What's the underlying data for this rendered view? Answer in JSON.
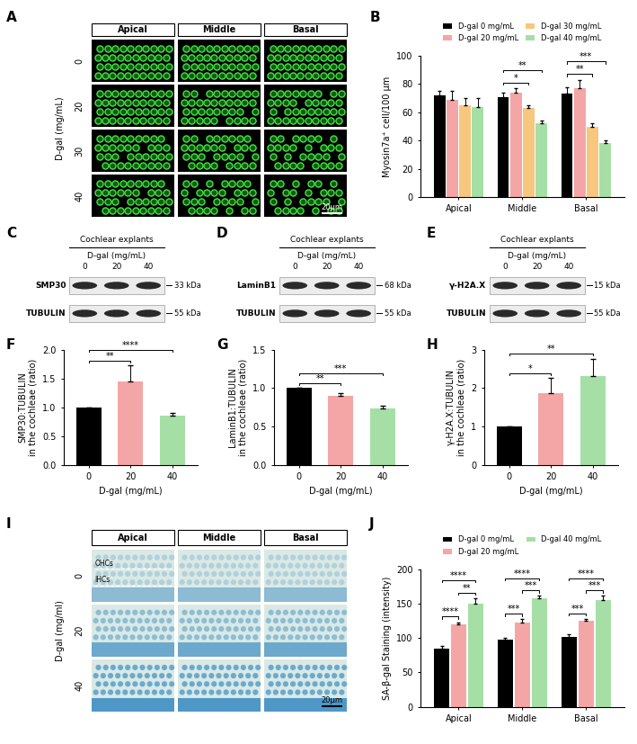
{
  "chart_data": [
    {
      "panel": "B",
      "type": "bar",
      "categories": [
        "Apical",
        "Middle",
        "Basal"
      ],
      "ylabel": "Myosin7a⁺ cell/100 μm",
      "ylim": [
        0,
        100
      ],
      "yticks": [
        0,
        20,
        40,
        60,
        80,
        100
      ],
      "legend": "top",
      "series": [
        {
          "name": "D-gal 0 mg/mL",
          "color": "#000000",
          "values": [
            72,
            71,
            73
          ],
          "errors": [
            3,
            3,
            5
          ]
        },
        {
          "name": "D-gal 20 mg/mL",
          "color": "#f4a6a6",
          "values": [
            69,
            74,
            77
          ],
          "errors": [
            6,
            3,
            6
          ]
        },
        {
          "name": "D-gal 30 mg/mL",
          "color": "#f7c77e",
          "values": [
            65,
            63,
            50
          ],
          "errors": [
            5,
            2,
            2
          ]
        },
        {
          "name": "D-gal 40 mg/mL",
          "color": "#a6dfa6",
          "values": [
            64,
            52,
            38
          ],
          "errors": [
            6,
            2,
            2
          ]
        }
      ],
      "significance": [
        {
          "category": "Middle",
          "from": 0,
          "to": 2,
          "label": "*"
        },
        {
          "category": "Middle",
          "from": 0,
          "to": 3,
          "label": "**"
        },
        {
          "category": "Basal",
          "from": 0,
          "to": 2,
          "label": "**"
        },
        {
          "category": "Basal",
          "from": 0,
          "to": 3,
          "label": "***"
        }
      ]
    },
    {
      "panel": "F",
      "type": "bar",
      "categories": [
        "0",
        "20",
        "40"
      ],
      "values": [
        1.0,
        1.45,
        0.85
      ],
      "errors": [
        0,
        0.28,
        0.05
      ],
      "colors": [
        "#000000",
        "#f4a6a6",
        "#a6dfa6"
      ],
      "xlabel": "D-gal (mg/mL)",
      "ylabel": "SMP30:TUBULIN\nin the cochleae (ratio)",
      "ylim": [
        0,
        2.0
      ],
      "yticks": [
        {
          "value": 0,
          "label": "0.0"
        },
        {
          "value": 0.5,
          "label": "0.5"
        },
        {
          "value": 1.0,
          "label": "1.0"
        },
        {
          "value": 1.5,
          "label": "1.5"
        },
        {
          "value": 2.0,
          "label": "2.0"
        }
      ],
      "significance": [
        {
          "from": 0,
          "to": 1,
          "label": "**"
        },
        {
          "from": 0,
          "to": 2,
          "label": "****"
        }
      ]
    },
    {
      "panel": "G",
      "type": "bar",
      "categories": [
        "0",
        "20",
        "40"
      ],
      "values": [
        1.0,
        0.9,
        0.73
      ],
      "errors": [
        0,
        0.03,
        0.04
      ],
      "colors": [
        "#000000",
        "#f4a6a6",
        "#a6dfa6"
      ],
      "xlabel": "D-gal (mg/mL)",
      "ylabel": "LaminB1:TUBULIN\nin the cochleae (ratio)",
      "ylim": [
        0,
        1.5
      ],
      "yticks": [
        {
          "value": 0,
          "label": "0.0"
        },
        {
          "value": 0.5,
          "label": "0.5"
        },
        {
          "value": 1.0,
          "label": "1.0"
        },
        {
          "value": 1.5,
          "label": "1.5"
        }
      ],
      "significance": [
        {
          "from": 0,
          "to": 1,
          "label": "**"
        },
        {
          "from": 0,
          "to": 2,
          "label": "***"
        }
      ]
    },
    {
      "panel": "H",
      "type": "bar",
      "categories": [
        "0",
        "20",
        "40"
      ],
      "values": [
        1.0,
        1.87,
        2.32
      ],
      "errors": [
        0,
        0.4,
        0.45
      ],
      "colors": [
        "#000000",
        "#f4a6a6",
        "#a6dfa6"
      ],
      "xlabel": "D-gal (mg/mL)",
      "ylabel": "γ-H2A.X:TUBULIN\nin the cochleae (ratio)",
      "ylim": [
        0,
        3
      ],
      "yticks": [
        0,
        1,
        2,
        3
      ],
      "significance": [
        {
          "from": 0,
          "to": 1,
          "label": "*"
        },
        {
          "from": 0,
          "to": 2,
          "label": "**"
        }
      ]
    },
    {
      "panel": "J",
      "type": "bar",
      "categories": [
        "Apical",
        "Middle",
        "Basal"
      ],
      "ylabel": "SA-β-gal Staining (intensity)",
      "ylim": [
        0,
        200
      ],
      "yticks": [
        0,
        50,
        100,
        150,
        200
      ],
      "legend": "top",
      "series": [
        {
          "name": "D-gal 0 mg/mL",
          "color": "#000000",
          "values": [
            85,
            97,
            101
          ],
          "errors": [
            4,
            3,
            4
          ]
        },
        {
          "name": "D-gal 20 mg/mL",
          "color": "#f4a6a6",
          "values": [
            120,
            123,
            125
          ],
          "errors": [
            3,
            4,
            3
          ]
        },
        {
          "name": "D-gal 40 mg/mL",
          "color": "#a6dfa6",
          "values": [
            150,
            158,
            155
          ],
          "errors": [
            8,
            3,
            6
          ]
        }
      ],
      "significance": [
        {
          "category": "Apical",
          "from": 0,
          "to": 1,
          "label": "****"
        },
        {
          "category": "Apical",
          "from": 1,
          "to": 2,
          "label": "**"
        },
        {
          "category": "Apical",
          "from": 0,
          "to": 2,
          "label": "****"
        },
        {
          "category": "Middle",
          "from": 0,
          "to": 1,
          "label": "***"
        },
        {
          "category": "Middle",
          "from": 1,
          "to": 2,
          "label": "***"
        },
        {
          "category": "Middle",
          "from": 0,
          "to": 2,
          "label": "****"
        },
        {
          "category": "Basal",
          "from": 0,
          "to": 1,
          "label": "***"
        },
        {
          "category": "Basal",
          "from": 1,
          "to": 2,
          "label": "***"
        },
        {
          "category": "Basal",
          "from": 0,
          "to": 2,
          "label": "****"
        }
      ]
    }
  ],
  "images": [
    {
      "panel": "A",
      "type": "image",
      "column_labels": [
        "Apical",
        "Middle",
        "Basal"
      ],
      "row_labels": [
        "0",
        "20",
        "30",
        "40"
      ],
      "row_title": "D-gal (mg/mL)",
      "scale_bar": "20μm"
    },
    {
      "panel": "I",
      "type": "image",
      "column_labels": [
        "Apical",
        "Middle",
        "Basal"
      ],
      "row_labels": [
        "0",
        "20",
        "40"
      ],
      "row_title": "D-gal (mg/ml)",
      "scale_bar": "20μm",
      "region_labels": [
        "OHCs",
        "IHCs"
      ]
    }
  ],
  "blots": [
    {
      "panel": "C",
      "type": "blot",
      "title": "Cochlear explants",
      "condition": "D-gal (mg/mL)",
      "lanes": [
        "0",
        "20",
        "40"
      ],
      "rows": [
        {
          "protein": "SMP30",
          "size": "33 kDa"
        },
        {
          "protein": "TUBULIN",
          "size": "55 kDa"
        }
      ]
    },
    {
      "panel": "D",
      "type": "blot",
      "title": "Cochlear explants",
      "condition": "D-gal (mg/mL)",
      "lanes": [
        "0",
        "20",
        "40"
      ],
      "rows": [
        {
          "protein": "LaminB1",
          "size": "68 kDa"
        },
        {
          "protein": "TUBULIN",
          "size": "55 kDa"
        }
      ]
    },
    {
      "panel": "E",
      "type": "blot",
      "title": "Cochlear explants",
      "condition": "D-gal (mg/mL)",
      "lanes": [
        "0",
        "20",
        "40"
      ],
      "rows": [
        {
          "protein": "γ-H2A.X",
          "size": "15 kDa"
        },
        {
          "protein": "TUBULIN",
          "size": "55 kDa"
        }
      ]
    }
  ]
}
